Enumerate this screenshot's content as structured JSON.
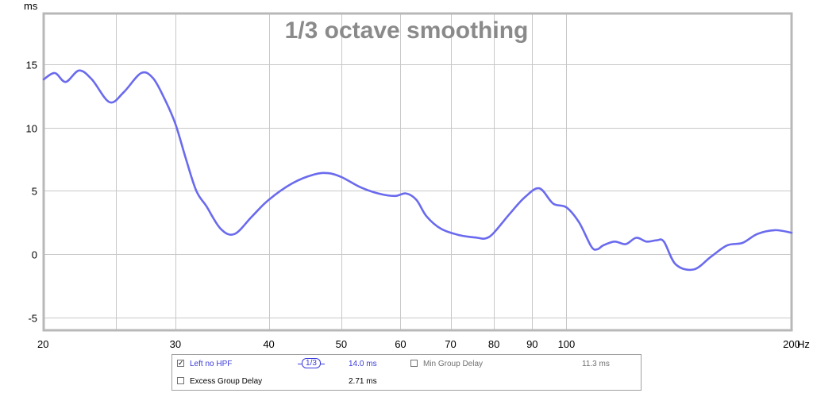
{
  "chart_data": {
    "type": "line",
    "title": "1/3 octave smoothing",
    "ylabel": "ms",
    "xunit": "Hz",
    "xscale": "log",
    "xlim": [
      20,
      200
    ],
    "ylim": [
      -6,
      19
    ],
    "x_ticks": [
      {
        "value": 20,
        "label": "20"
      },
      {
        "value": 30,
        "label": "30"
      },
      {
        "value": 40,
        "label": "40"
      },
      {
        "value": 50,
        "label": "50"
      },
      {
        "value": 60,
        "label": "60"
      },
      {
        "value": 70,
        "label": "70"
      },
      {
        "value": 80,
        "label": "80"
      },
      {
        "value": 90,
        "label": "90"
      },
      {
        "value": 100,
        "label": "100"
      },
      {
        "value": 200,
        "label": "200"
      }
    ],
    "x_minor_ticks": [
      25
    ],
    "y_ticks": [
      {
        "value": -5,
        "label": "-5"
      },
      {
        "value": 0,
        "label": "0"
      },
      {
        "value": 5,
        "label": "5"
      },
      {
        "value": 10,
        "label": "10"
      },
      {
        "value": 15,
        "label": "15"
      }
    ],
    "grid": true,
    "series": [
      {
        "name": "Left no HPF",
        "color": "#6a6aee",
        "x": [
          20,
          20.7,
          21.4,
          22.3,
          23.2,
          24.5,
          25.6,
          27.0,
          28.0,
          29.0,
          30.0,
          31.0,
          32.0,
          33.0,
          34.5,
          36.0,
          38.0,
          40.0,
          43.0,
          46.0,
          48.0,
          50.0,
          53.0,
          56.0,
          59.0,
          61.0,
          63.0,
          65.0,
          68.0,
          72.0,
          76.0,
          78.0,
          80.0,
          84.0,
          88.0,
          92.0,
          96.0,
          100.0,
          104.0,
          108.0,
          110.0,
          112.0,
          116.0,
          120.0,
          124.0,
          128.0,
          132.0,
          135.0,
          140.0,
          148.0,
          156.0,
          164.0,
          172.0,
          180.0,
          190.0,
          200.0
        ],
        "values": [
          13.8,
          14.3,
          13.6,
          14.5,
          13.8,
          12.0,
          12.8,
          14.3,
          13.9,
          12.3,
          10.3,
          7.5,
          5.0,
          3.8,
          2.0,
          1.6,
          3.0,
          4.3,
          5.6,
          6.3,
          6.4,
          6.1,
          5.3,
          4.8,
          4.6,
          4.8,
          4.3,
          3.0,
          2.0,
          1.5,
          1.3,
          1.25,
          1.7,
          3.2,
          4.5,
          5.2,
          4.0,
          3.7,
          2.5,
          0.6,
          0.4,
          0.7,
          1.0,
          0.8,
          1.3,
          1.0,
          1.1,
          1.0,
          -0.8,
          -1.2,
          -0.2,
          0.7,
          0.9,
          1.6,
          1.9,
          1.7
        ]
      }
    ]
  },
  "legend": {
    "row1_checkbox_mark": "✓",
    "series_name": "Left no HPF",
    "smoothing_label": "1/3",
    "series_value": "14.0 ms",
    "min_group_delay_label": "Min Group Delay",
    "min_group_delay_value": "11.3 ms",
    "excess_group_delay_label": "Excess Group Delay",
    "excess_group_delay_value": "2.71 ms"
  }
}
